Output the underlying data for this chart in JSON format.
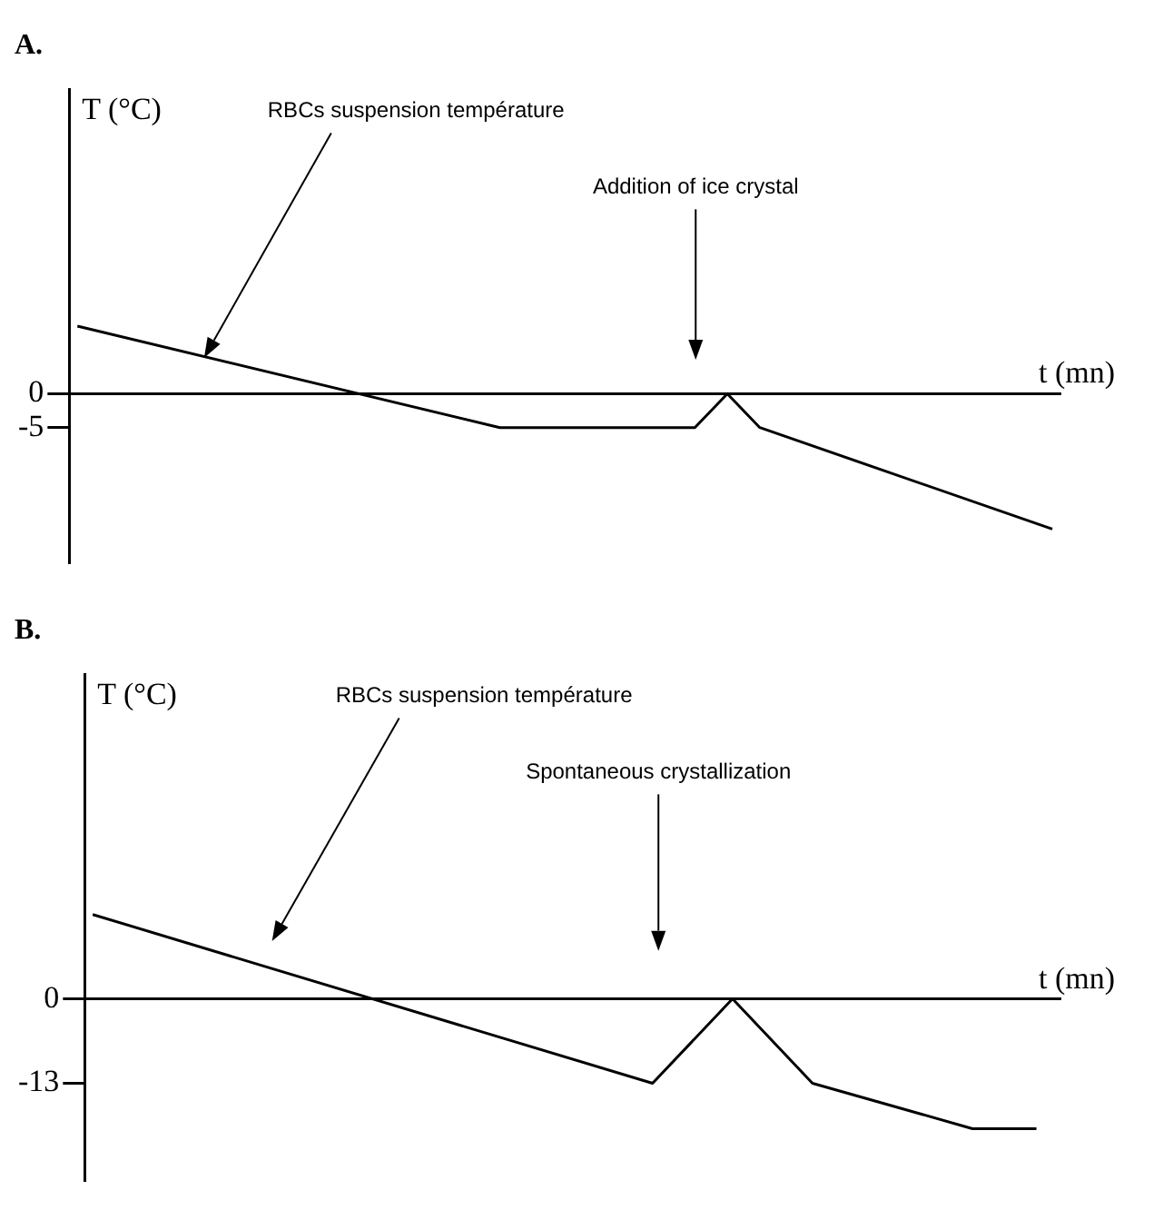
{
  "chart_data": [
    {
      "type": "line",
      "title": "A.",
      "xlabel": "t (mn)",
      "ylabel": "T (°C)",
      "categories": [
        null,
        null,
        null,
        null,
        null,
        null,
        null,
        null,
        null,
        null,
        null,
        null,
        null,
        null,
        null,
        null,
        null,
        null,
        null,
        null,
        null,
        null,
        null,
        null,
        null,
        null,
        null,
        null,
        null,
        null,
        null,
        null,
        null,
        null,
        null,
        null,
        null,
        null,
        null,
        null,
        null,
        null,
        null,
        null,
        null,
        null,
        null,
        null,
        null,
        null,
        null,
        null,
        null,
        null,
        null,
        null,
        null,
        null,
        null,
        null,
        null
      ],
      "series": [
        {
          "color": "#000000",
          "values": [
            10,
            null,
            null,
            null,
            null,
            null,
            null,
            null,
            null,
            null,
            null,
            null,
            null,
            null,
            null,
            null,
            null,
            null,
            null,
            null,
            null,
            null,
            null,
            null,
            null,
            null,
            -5,
            null,
            null,
            null,
            null,
            null,
            null,
            null,
            null,
            null,
            null,
            null,
            -5,
            null,
            0,
            null,
            -5,
            null,
            null,
            null,
            null,
            null,
            null,
            null,
            null,
            null,
            null,
            null,
            null,
            null,
            null,
            null,
            null,
            null,
            -20
          ]
        }
      ],
      "ylim": [
        -25,
        45
      ],
      "yticks": [
        0,
        -5
      ],
      "tick_labels": "y",
      "legend": false,
      "marker": "none",
      "line_style": "solid",
      "annotations": [
        "RBCs suspension température",
        "Addition of ice crystal"
      ]
    },
    {
      "type": "line",
      "title": "B.",
      "xlabel": "t (mn)",
      "ylabel": "T (°C)",
      "categories": [
        null,
        null,
        null,
        null,
        null,
        null,
        null,
        null,
        null,
        null,
        null,
        null,
        null,
        null,
        null,
        null,
        null,
        null,
        null,
        null,
        null,
        null,
        null,
        null,
        null,
        null,
        null,
        null,
        null,
        null,
        null,
        null,
        null,
        null,
        null,
        null,
        null,
        null,
        null,
        null,
        null,
        null,
        null,
        null,
        null,
        null,
        null,
        null,
        null,
        null,
        null,
        null,
        null,
        null,
        null,
        null,
        null,
        null,
        null,
        null,
        null
      ],
      "series": [
        {
          "color": "#000000",
          "values": [
            13,
            null,
            null,
            null,
            null,
            null,
            null,
            null,
            null,
            null,
            null,
            null,
            null,
            null,
            null,
            null,
            null,
            null,
            null,
            null,
            null,
            null,
            null,
            null,
            null,
            null,
            null,
            null,
            null,
            null,
            null,
            null,
            null,
            null,
            null,
            -13,
            null,
            null,
            null,
            null,
            0,
            null,
            null,
            null,
            null,
            -13,
            null,
            null,
            null,
            null,
            null,
            null,
            null,
            null,
            null,
            -20,
            null,
            null,
            null,
            -20,
            null
          ]
        }
      ],
      "ylim": [
        -28,
        50
      ],
      "yticks": [
        0,
        -13
      ],
      "tick_labels": "y",
      "legend": false,
      "marker": "none",
      "line_style": "solid",
      "annotations": [
        "RBCs suspension température",
        "Spontaneous crystallization"
      ]
    }
  ]
}
